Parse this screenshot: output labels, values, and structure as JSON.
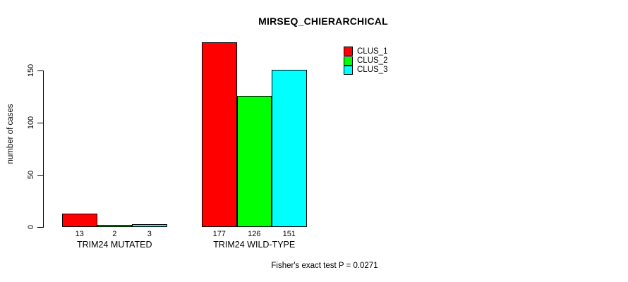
{
  "title": "MIRSEQ_CHIERARCHICAL",
  "y_axis": {
    "label": "number of cases",
    "ticks": [
      "0",
      "50",
      "100",
      "150"
    ]
  },
  "legend": {
    "items": [
      {
        "label": "CLUS_1",
        "color": "#ff0000"
      },
      {
        "label": "CLUS_2",
        "color": "#00ff00"
      },
      {
        "label": "CLUS_3",
        "color": "#00ffff"
      }
    ]
  },
  "footer": "Fisher's exact test P = 0.0271",
  "chart_data": {
    "type": "bar",
    "title": "MIRSEQ_CHIERARCHICAL",
    "xlabel": "",
    "ylabel": "number of cases",
    "ylim": [
      0,
      150
    ],
    "yticks": [
      0,
      50,
      100,
      150
    ],
    "grid": false,
    "legend_position": "top-right",
    "categories": [
      "TRIM24 MUTATED",
      "TRIM24 WILD-TYPE"
    ],
    "series": [
      {
        "name": "CLUS_1",
        "color": "#ff0000",
        "values": [
          13,
          177
        ]
      },
      {
        "name": "CLUS_2",
        "color": "#00ff00",
        "values": [
          2,
          126
        ]
      },
      {
        "name": "CLUS_3",
        "color": "#00ffff",
        "values": [
          3,
          151
        ]
      }
    ],
    "bar_value_labels": [
      [
        "13",
        "2",
        "3"
      ],
      [
        "177",
        "126",
        "151"
      ]
    ],
    "annotation": "Fisher's exact test P = 0.0271"
  }
}
